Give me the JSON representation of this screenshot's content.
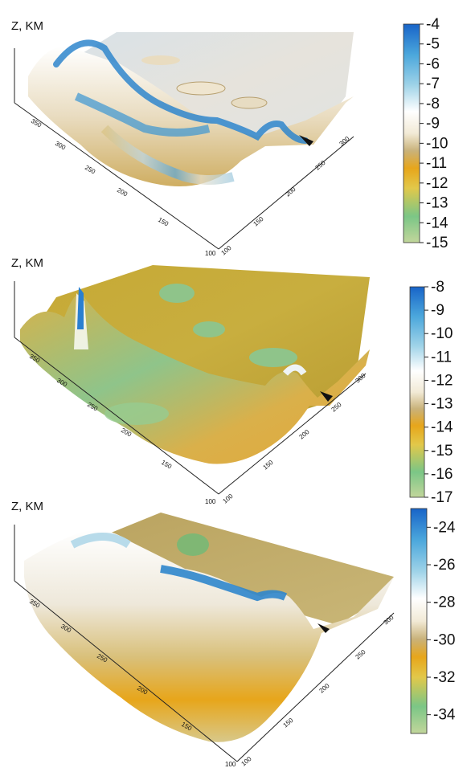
{
  "panels": [
    {
      "z_axis_label": "Z, KM",
      "colorbar_ticks": [
        "-4",
        "-5",
        "-6",
        "-7",
        "-8",
        "-9",
        "-10",
        "-11",
        "-12",
        "-13",
        "-14",
        "-15"
      ],
      "left_axis_ticks": [
        "350",
        "300",
        "250",
        "200",
        "150",
        "100"
      ],
      "right_axis_ticks": [
        "100",
        "150",
        "200",
        "250",
        "300"
      ]
    },
    {
      "z_axis_label": "Z, KM",
      "colorbar_ticks": [
        "-8",
        "-9",
        "-10",
        "-11",
        "-12",
        "-13",
        "-14",
        "-15",
        "-16",
        "-17"
      ],
      "left_axis_ticks": [
        "350",
        "300",
        "250",
        "200",
        "150",
        "100"
      ],
      "right_axis_ticks": [
        "100",
        "150",
        "200",
        "250",
        "300"
      ]
    },
    {
      "z_axis_label": "Z, KM",
      "colorbar_ticks": [
        "-24",
        "-26",
        "-28",
        "-30",
        "-32",
        "-34"
      ],
      "left_axis_ticks": [
        "350",
        "300",
        "250",
        "200",
        "150",
        "100"
      ],
      "right_axis_ticks": [
        "100",
        "150",
        "200",
        "250",
        "300"
      ]
    }
  ],
  "chart_data": [
    {
      "type": "heatmap",
      "title": "",
      "zlabel": "Z, KM",
      "colorbar_range": [
        -15,
        -4
      ],
      "colorbar_ticks": [
        -4,
        -5,
        -6,
        -7,
        -8,
        -9,
        -10,
        -11,
        -12,
        -13,
        -14,
        -15
      ],
      "x_ticks": [
        100,
        150,
        200,
        250,
        300,
        350
      ],
      "y_ticks": [
        100,
        150,
        200,
        250,
        300
      ],
      "colormap": [
        "#c2d69b",
        "#7bc686",
        "#e2c84a",
        "#e7a61b",
        "#c9b27a",
        "#f2ead6",
        "#ffffff",
        "#9fd3e8",
        "#4ba7dc",
        "#1864c8"
      ]
    },
    {
      "type": "heatmap",
      "title": "",
      "zlabel": "Z, KM",
      "colorbar_range": [
        -17,
        -8
      ],
      "colorbar_ticks": [
        -8,
        -9,
        -10,
        -11,
        -12,
        -13,
        -14,
        -15,
        -16,
        -17
      ],
      "x_ticks": [
        100,
        150,
        200,
        250,
        300,
        350
      ],
      "y_ticks": [
        100,
        150,
        200,
        250,
        300
      ],
      "colormap": [
        "#c2d69b",
        "#7bc686",
        "#e2c84a",
        "#e7a61b",
        "#c9b27a",
        "#f2ead6",
        "#ffffff",
        "#9fd3e8",
        "#4ba7dc",
        "#1864c8"
      ]
    },
    {
      "type": "heatmap",
      "title": "",
      "zlabel": "Z, KM",
      "colorbar_range": [
        -35,
        -23
      ],
      "colorbar_ticks": [
        -24,
        -26,
        -28,
        -30,
        -32,
        -34
      ],
      "x_ticks": [
        100,
        150,
        200,
        250,
        300,
        350
      ],
      "y_ticks": [
        100,
        150,
        200,
        250,
        300
      ],
      "colormap": [
        "#c2d69b",
        "#7bc686",
        "#e2c84a",
        "#e7a61b",
        "#c9b27a",
        "#f2ead6",
        "#ffffff",
        "#9fd3e8",
        "#4ba7dc",
        "#1864c8"
      ]
    }
  ]
}
